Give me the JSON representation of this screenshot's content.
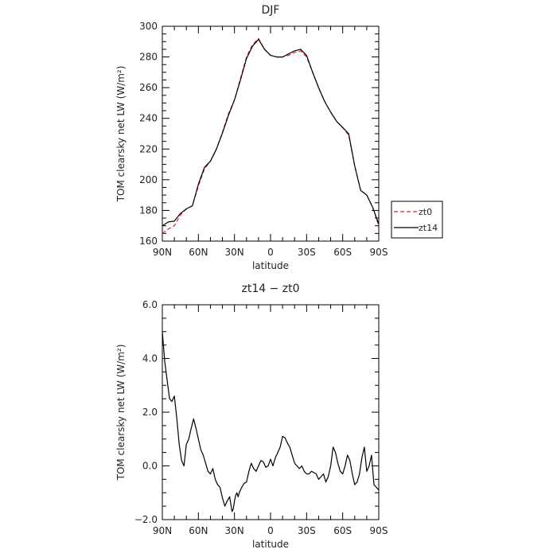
{
  "chart_data": [
    {
      "type": "line",
      "title": "DJF",
      "xlabel": "latitude",
      "ylabel": "TOM clearsky net LW (W/m²)",
      "xlim": [
        90,
        -90
      ],
      "ylim": [
        160,
        300
      ],
      "yticks": [
        "160",
        "180",
        "200",
        "220",
        "240",
        "260",
        "280",
        "300"
      ],
      "xticks": [
        {
          "v": 90,
          "label": "90N"
        },
        {
          "v": 60,
          "label": "60N"
        },
        {
          "v": 30,
          "label": "30N"
        },
        {
          "v": 0,
          "label": "0"
        },
        {
          "v": -30,
          "label": "30S"
        },
        {
          "v": -60,
          "label": "60S"
        },
        {
          "v": -90,
          "label": "90S"
        }
      ],
      "legend_position": "outside-right-bottom",
      "series": [
        {
          "name": "zt0",
          "color": "#e0202a",
          "dash": "dashed",
          "x": [
            90,
            85,
            80,
            75,
            70,
            65,
            60,
            55,
            50,
            45,
            40,
            35,
            30,
            25,
            20,
            15,
            10,
            5,
            0,
            -5,
            -10,
            -15,
            -20,
            -25,
            -30,
            -35,
            -40,
            -45,
            -50,
            -55,
            -60,
            -65,
            -70,
            -75,
            -80,
            -85,
            -90
          ],
          "y": [
            165,
            168,
            170,
            177,
            181,
            183,
            196,
            207,
            212,
            220,
            231,
            243,
            252,
            266,
            280,
            288,
            292,
            285,
            281,
            280,
            280,
            281,
            283,
            284,
            280,
            270,
            260,
            251,
            244,
            238,
            234,
            229,
            209,
            193,
            190,
            182,
            170
          ]
        },
        {
          "name": "zt14",
          "color": "#000000",
          "dash": "solid",
          "x": [
            90,
            85,
            80,
            75,
            70,
            65,
            60,
            55,
            50,
            45,
            40,
            35,
            30,
            25,
            20,
            15,
            10,
            5,
            0,
            -5,
            -10,
            -15,
            -20,
            -25,
            -30,
            -35,
            -40,
            -45,
            -50,
            -55,
            -60,
            -65,
            -70,
            -75,
            -80,
            -85,
            -90
          ],
          "y": [
            170,
            172.5,
            173,
            178,
            181,
            183,
            197,
            208,
            212,
            220,
            230.5,
            242,
            252,
            265,
            279,
            287,
            291.5,
            285,
            281,
            280,
            280,
            282,
            284,
            285,
            281,
            270,
            260,
            251,
            244,
            238,
            234,
            230,
            209,
            193,
            190,
            182,
            171
          ]
        }
      ]
    },
    {
      "type": "line",
      "title": "zt14 − zt0",
      "xlabel": "latitude",
      "ylabel": "TOM clearsky net LW (W/m²)",
      "xlim": [
        90,
        -90
      ],
      "ylim": [
        -2.0,
        6.0
      ],
      "yticks": [
        "−2.0",
        "0.0",
        "2.0",
        "4.0",
        "6.0"
      ],
      "xticks": [
        {
          "v": 90,
          "label": "90N"
        },
        {
          "v": 60,
          "label": "60N"
        },
        {
          "v": 30,
          "label": "30N"
        },
        {
          "v": 0,
          "label": "0"
        },
        {
          "v": -30,
          "label": "30S"
        },
        {
          "v": -60,
          "label": "60S"
        },
        {
          "v": -90,
          "label": "90S"
        }
      ],
      "series": [
        {
          "color": "#000000",
          "dash": "solid",
          "x": [
            90,
            88,
            86,
            84,
            82,
            80,
            78,
            76,
            74,
            72,
            70,
            68,
            66,
            64,
            62,
            60,
            58,
            56,
            54,
            52,
            50,
            48,
            46,
            44,
            42,
            40,
            38,
            36,
            34,
            32,
            31,
            30,
            29,
            28,
            27,
            26,
            24,
            22,
            20,
            18,
            16,
            14,
            12,
            10,
            8,
            6,
            4,
            2,
            0,
            -2,
            -4,
            -6,
            -8,
            -10,
            -12,
            -14,
            -16,
            -18,
            -20,
            -22,
            -24,
            -26,
            -28,
            -30,
            -32,
            -34,
            -36,
            -38,
            -40,
            -42,
            -44,
            -46,
            -48,
            -50,
            -52,
            -54,
            -56,
            -58,
            -60,
            -62,
            -64,
            -66,
            -68,
            -70,
            -72,
            -74,
            -76,
            -78,
            -80,
            -82,
            -84,
            -86,
            -88,
            -90
          ],
          "y": [
            5.0,
            3.9,
            3.2,
            2.5,
            2.4,
            2.6,
            1.8,
            0.8,
            0.2,
            0.0,
            0.8,
            1.0,
            1.4,
            1.75,
            1.4,
            1.0,
            0.6,
            0.4,
            0.1,
            -0.2,
            -0.3,
            -0.1,
            -0.5,
            -0.7,
            -0.8,
            -1.2,
            -1.5,
            -1.3,
            -1.15,
            -1.7,
            -1.6,
            -1.3,
            -1.1,
            -1.0,
            -1.15,
            -1.0,
            -0.8,
            -0.65,
            -0.6,
            -0.2,
            0.1,
            -0.1,
            -0.2,
            0.0,
            0.2,
            0.15,
            -0.05,
            0.0,
            0.25,
            0.0,
            0.3,
            0.5,
            0.7,
            1.1,
            1.05,
            0.85,
            0.7,
            0.4,
            0.1,
            0.0,
            -0.1,
            0.0,
            -0.2,
            -0.3,
            -0.3,
            -0.2,
            -0.25,
            -0.3,
            -0.5,
            -0.4,
            -0.3,
            -0.6,
            -0.4,
            0.0,
            0.7,
            0.5,
            0.1,
            -0.2,
            -0.3,
            0.0,
            0.4,
            0.2,
            -0.3,
            -0.7,
            -0.6,
            -0.3,
            0.3,
            0.7,
            -0.2,
            0.0,
            0.4,
            -0.7,
            -0.8,
            -0.9
          ]
        }
      ]
    }
  ]
}
